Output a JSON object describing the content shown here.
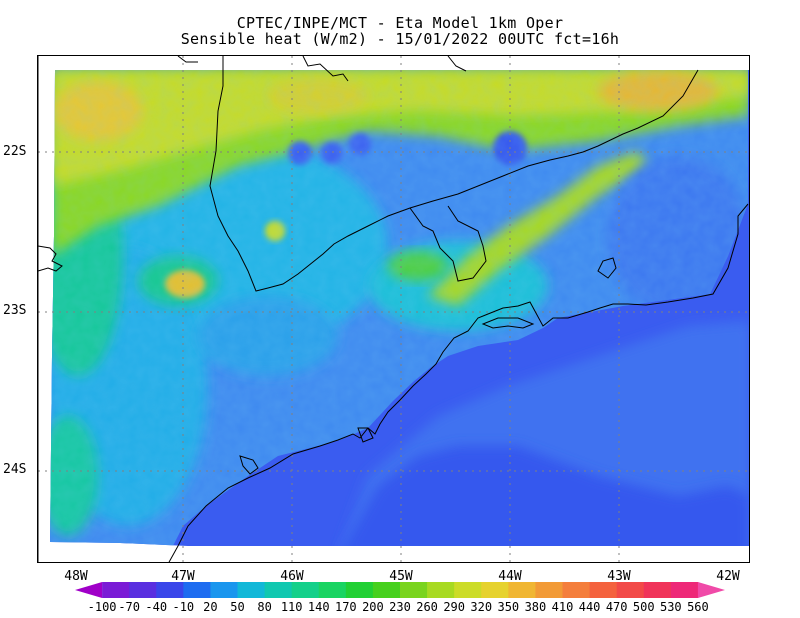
{
  "title": {
    "line1": "CPTEC/INPE/MCT -  Eta Model 1km Oper",
    "line2": "Sensible heat (W/m2) - 15/01/2022 00UTC fct=16h"
  },
  "lat_ticks": [
    "22S",
    "23S",
    "24S"
  ],
  "lon_ticks": [
    "48W",
    "47W",
    "46W",
    "45W",
    "44W",
    "43W",
    "42W"
  ],
  "colorbar": {
    "labels": [
      "-100",
      "-70",
      "-40",
      "-10",
      "20",
      "50",
      "80",
      "110",
      "140",
      "170",
      "200",
      "230",
      "260",
      "290",
      "320",
      "350",
      "380",
      "410",
      "440",
      "470",
      "500",
      "530",
      "560"
    ],
    "colors": [
      "#a000c8",
      "#7a1bd6",
      "#5a2fe0",
      "#3a46ea",
      "#1e6cf0",
      "#1a96ee",
      "#12b8d8",
      "#10c8b0",
      "#14d08a",
      "#1ad462",
      "#22d034",
      "#46d01e",
      "#7ad41e",
      "#a8da22",
      "#ccdc28",
      "#e6d22e",
      "#f0b632",
      "#f29a36",
      "#f47e3c",
      "#f4623e",
      "#f24a48",
      "#f0345a",
      "#ee2878",
      "#f04aa8"
    ]
  },
  "colors": {
    "ocean": "#3a5cf0",
    "ocean_near": "#2e4ee8",
    "land_base": "#3f8af0",
    "coast_line": "#000000"
  }
}
